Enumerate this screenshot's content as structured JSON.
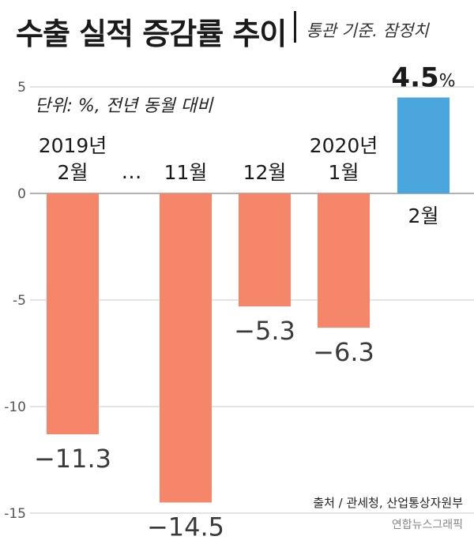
{
  "header": {
    "title": "수출 실적 증감률 추이",
    "subtitle": "통관 기준. 잠정치"
  },
  "chart_data": {
    "type": "bar",
    "title": "수출 실적 증감률 추이",
    "subtitle": "통관 기준. 잠정치",
    "unit_note": "단위: %, 전년 동월 대비",
    "categories": [
      {
        "year": "2019년",
        "month": "2월"
      },
      {
        "year": "",
        "month": "11월"
      },
      {
        "year": "",
        "month": "12월"
      },
      {
        "year": "2020년",
        "month": "1월"
      },
      {
        "year": "",
        "month": "2월"
      }
    ],
    "ellipsis": "…",
    "values": [
      -11.3,
      -14.5,
      -5.3,
      -6.3,
      4.5
    ],
    "value_labels": [
      "−11.3",
      "−14.5",
      "−5.3",
      "−6.3",
      "4.5"
    ],
    "value_suffix": "%",
    "y_ticks": [
      {
        "value": 5,
        "label": "5"
      },
      {
        "value": 0,
        "label": "0"
      },
      {
        "value": -5,
        "label": "-5"
      },
      {
        "value": -10,
        "label": "-10"
      },
      {
        "value": -15,
        "label": "-15"
      }
    ],
    "ylim": [
      -15,
      5
    ],
    "grid": true,
    "colors": {
      "negative": "#f5866a",
      "positive": "#4aa6dd",
      "grid": "#c8c8c8",
      "zero_line": "#999999"
    }
  },
  "footer": {
    "source": "출처 / 관세청, 산업통상자원부",
    "credit": "연합뉴스그래픽"
  }
}
